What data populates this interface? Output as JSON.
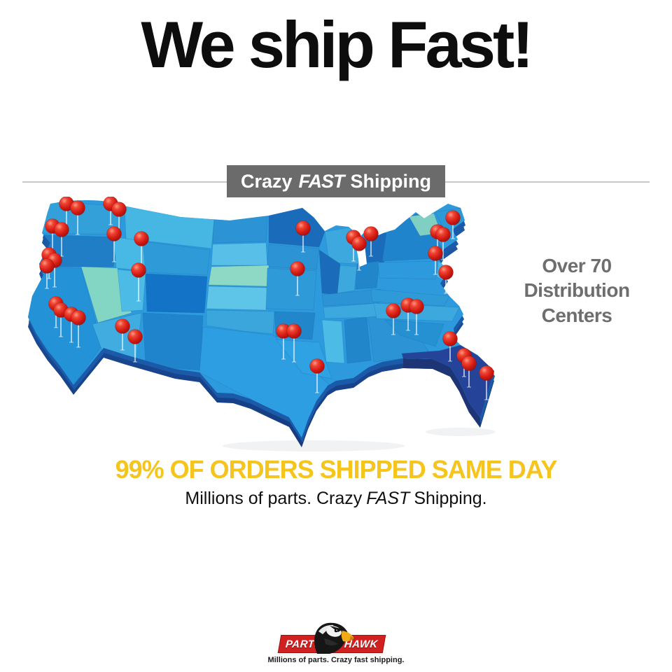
{
  "title": "We ship Fast!",
  "divider_banner": {
    "prefix": "Crazy",
    "fast": "FAST",
    "suffix": "Shipping"
  },
  "callout": {
    "lines": [
      "Over 70",
      "Distribution",
      "Centers"
    ]
  },
  "headline": "99% OF ORDERS SHIPPED SAME DAY",
  "subheadline": {
    "prefix": "Millions of parts. Crazy",
    "fast": "FAST",
    "suffix": "Shipping."
  },
  "logo": {
    "name_left": "PARTS",
    "name_right": "HAWK",
    "tagline": "Millions of parts. Crazy fast shipping."
  },
  "colors": {
    "accent_yellow": "#f5c51d",
    "banner_gray": "#6b6b6b",
    "callout_gray": "#6e6e6e",
    "pin_red": "#d11a12",
    "logo_red": "#d0201f",
    "map_blue": "#2e9ade",
    "map_dark_blue": "#1a6cba",
    "map_teal": "#8ed8c6",
    "map_navy_florida": "#26439a"
  },
  "map": {
    "pins": [
      [
        67,
        10,
        30
      ],
      [
        83,
        16,
        34
      ],
      [
        130,
        10,
        26
      ],
      [
        142,
        18,
        30
      ],
      [
        47,
        42,
        30
      ],
      [
        60,
        47,
        34
      ],
      [
        135,
        53,
        36
      ],
      [
        174,
        60,
        38
      ],
      [
        42,
        83,
        30
      ],
      [
        50,
        91,
        34
      ],
      [
        39,
        99,
        28
      ],
      [
        170,
        105,
        40
      ],
      [
        405,
        45,
        30
      ],
      [
        397,
        103,
        34
      ],
      [
        477,
        58,
        30
      ],
      [
        485,
        67,
        34
      ],
      [
        502,
        53,
        28
      ],
      [
        619,
        30,
        26
      ],
      [
        597,
        50,
        28
      ],
      [
        605,
        54,
        32
      ],
      [
        594,
        81,
        26
      ],
      [
        609,
        108,
        26
      ],
      [
        52,
        153,
        30
      ],
      [
        59,
        162,
        34
      ],
      [
        74,
        168,
        36
      ],
      [
        84,
        173,
        38
      ],
      [
        147,
        185,
        30
      ],
      [
        165,
        200,
        32
      ],
      [
        534,
        163,
        30
      ],
      [
        555,
        155,
        32
      ],
      [
        567,
        157,
        36
      ],
      [
        377,
        192,
        36
      ],
      [
        392,
        192,
        40
      ],
      [
        615,
        203,
        28
      ],
      [
        425,
        242,
        34
      ],
      [
        635,
        227,
        26
      ],
      [
        642,
        238,
        30
      ],
      [
        667,
        252,
        34
      ]
    ]
  }
}
